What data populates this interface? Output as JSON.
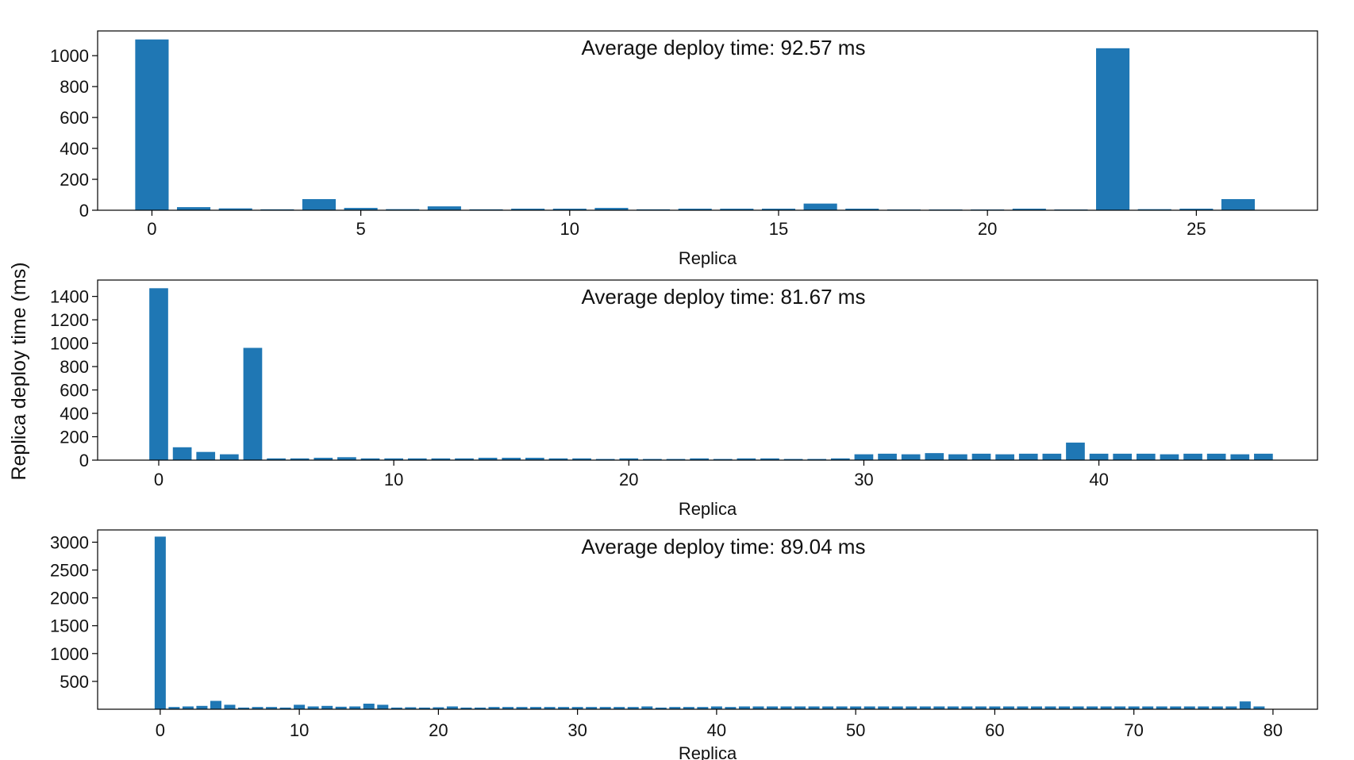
{
  "figure": {
    "ylabel": "Replica deploy time (ms)",
    "bar_color": "#1f77b4"
  },
  "chart_data": [
    {
      "type": "bar",
      "title": "Average deploy time: 92.57 ms",
      "xlabel": "Replica",
      "ylabel": "",
      "x": [
        0,
        1,
        2,
        3,
        4,
        5,
        6,
        7,
        8,
        9,
        10,
        11,
        12,
        13,
        14,
        15,
        16,
        17,
        18,
        19,
        20,
        21,
        22,
        23,
        24,
        25,
        26
      ],
      "values": [
        1105,
        20,
        12,
        6,
        72,
        15,
        7,
        25,
        6,
        10,
        10,
        15,
        6,
        10,
        10,
        10,
        43,
        10,
        5,
        5,
        5,
        10,
        5,
        1048,
        7,
        10,
        72
      ],
      "xticks": [
        0,
        5,
        10,
        15,
        20,
        25
      ],
      "yticks": [
        0,
        200,
        400,
        600,
        800,
        1000
      ],
      "xlim": [
        -1.3,
        27.9
      ],
      "ylim": [
        0,
        1160
      ],
      "grid": false,
      "legend": false
    },
    {
      "type": "bar",
      "title": "Average deploy time: 81.67 ms",
      "xlabel": "Replica",
      "ylabel": "",
      "x": [
        0,
        1,
        2,
        3,
        4,
        5,
        6,
        7,
        8,
        9,
        10,
        11,
        12,
        13,
        14,
        15,
        16,
        17,
        18,
        19,
        20,
        21,
        22,
        23,
        24,
        25,
        26,
        27,
        28,
        29,
        30,
        31,
        32,
        33,
        34,
        35,
        36,
        37,
        38,
        39,
        40,
        41,
        42,
        43,
        44,
        45,
        46,
        47
      ],
      "values": [
        1470,
        110,
        70,
        50,
        960,
        15,
        15,
        20,
        25,
        15,
        15,
        15,
        15,
        15,
        20,
        20,
        20,
        15,
        15,
        10,
        15,
        10,
        10,
        15,
        10,
        15,
        15,
        10,
        10,
        15,
        50,
        55,
        50,
        60,
        50,
        55,
        50,
        55,
        55,
        150,
        55,
        55,
        55,
        50,
        55,
        55,
        50,
        55
      ],
      "xticks": [
        0,
        10,
        20,
        30,
        40
      ],
      "yticks": [
        0,
        200,
        400,
        600,
        800,
        1000,
        1200,
        1400
      ],
      "xlim": [
        -2.6,
        49.3
      ],
      "ylim": [
        0,
        1540
      ],
      "grid": false,
      "legend": false
    },
    {
      "type": "bar",
      "title": "Average deploy time: 89.04 ms",
      "xlabel": "Replica",
      "ylabel": "",
      "x": [
        0,
        1,
        2,
        3,
        4,
        5,
        6,
        7,
        8,
        9,
        10,
        11,
        12,
        13,
        14,
        15,
        16,
        17,
        18,
        19,
        20,
        21,
        22,
        23,
        24,
        25,
        26,
        27,
        28,
        29,
        30,
        31,
        32,
        33,
        34,
        35,
        36,
        37,
        38,
        39,
        40,
        41,
        42,
        43,
        44,
        45,
        46,
        47,
        48,
        49,
        50,
        51,
        52,
        53,
        54,
        55,
        56,
        57,
        58,
        59,
        60,
        61,
        62,
        63,
        64,
        65,
        66,
        67,
        68,
        69,
        70,
        71,
        72,
        73,
        74,
        75,
        76,
        77,
        78,
        79
      ],
      "values": [
        3100,
        40,
        50,
        60,
        150,
        80,
        30,
        40,
        40,
        30,
        80,
        50,
        60,
        45,
        50,
        100,
        80,
        30,
        35,
        30,
        35,
        50,
        30,
        30,
        40,
        40,
        40,
        40,
        40,
        40,
        40,
        40,
        40,
        40,
        40,
        50,
        30,
        40,
        40,
        40,
        50,
        40,
        50,
        50,
        50,
        50,
        50,
        50,
        50,
        50,
        50,
        50,
        50,
        50,
        50,
        50,
        50,
        50,
        50,
        50,
        50,
        50,
        50,
        50,
        50,
        50,
        50,
        50,
        50,
        50,
        50,
        50,
        50,
        50,
        50,
        50,
        50,
        50,
        140,
        50
      ],
      "xticks": [
        0,
        10,
        20,
        30,
        40,
        50,
        60,
        70,
        80
      ],
      "yticks": [
        500,
        1000,
        1500,
        2000,
        2500,
        3000
      ],
      "xlim": [
        -4.5,
        83.2
      ],
      "ylim": [
        0,
        3220
      ],
      "grid": false,
      "legend": false
    }
  ]
}
